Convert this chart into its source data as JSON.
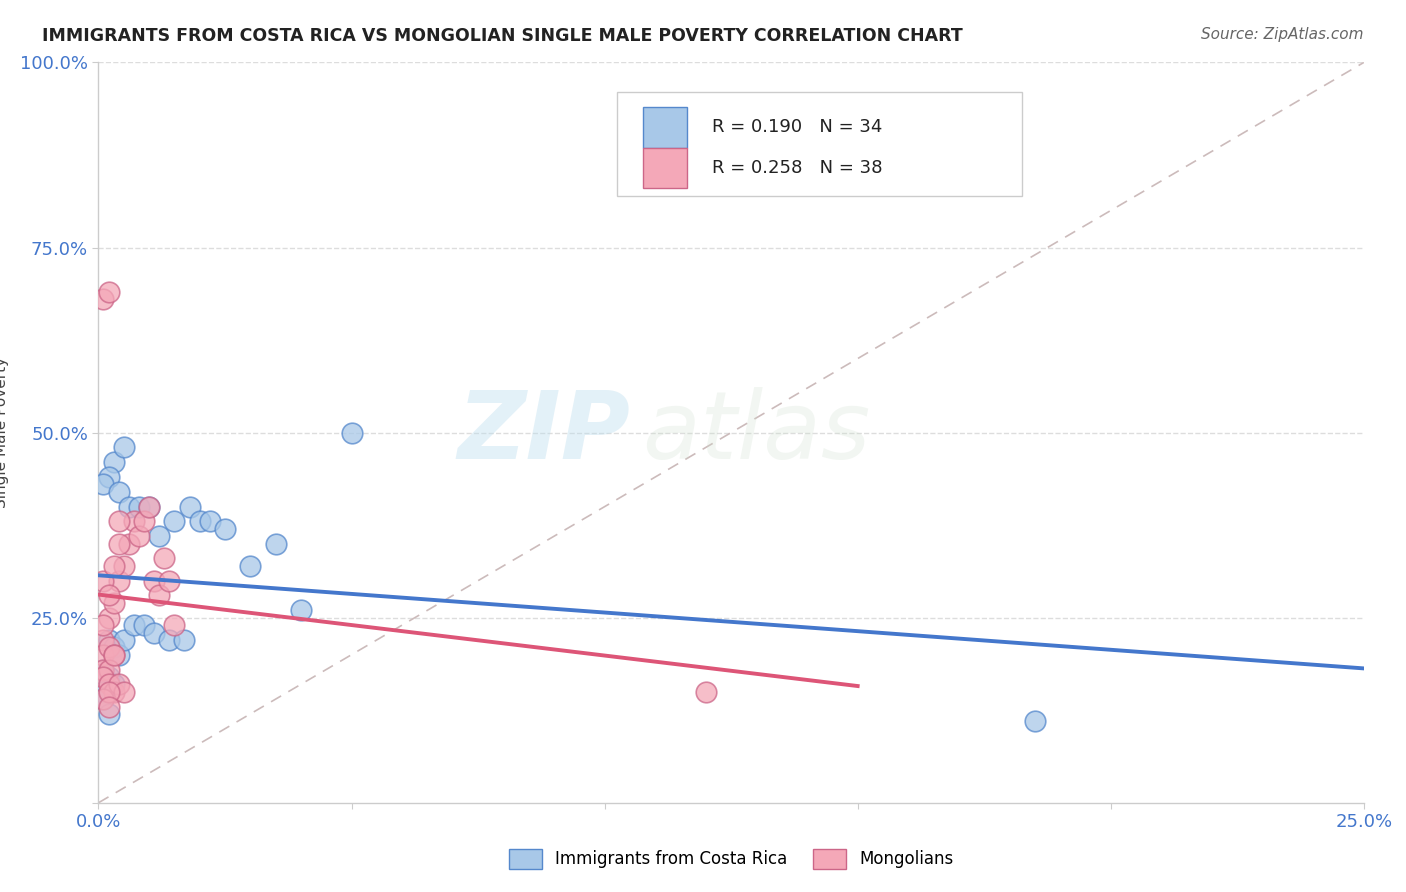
{
  "title": "IMMIGRANTS FROM COSTA RICA VS MONGOLIAN SINGLE MALE POVERTY CORRELATION CHART",
  "source_text": "Source: ZipAtlas.com",
  "ylabel": "Single Male Poverty",
  "xlim": [
    0.0,
    0.25
  ],
  "ylim": [
    0.0,
    1.0
  ],
  "xticks": [
    0.0,
    0.05,
    0.1,
    0.15,
    0.2,
    0.25
  ],
  "yticks": [
    0.0,
    0.25,
    0.5,
    0.75,
    1.0
  ],
  "xtick_labels": [
    "0.0%",
    "",
    "",
    "",
    "",
    "25.0%"
  ],
  "ytick_labels": [
    "",
    "25.0%",
    "50.0%",
    "75.0%",
    "100.0%"
  ],
  "blue_R": 0.19,
  "blue_N": 34,
  "pink_R": 0.258,
  "pink_N": 38,
  "blue_color": "#A8C8E8",
  "pink_color": "#F4A8B8",
  "blue_edge_color": "#5588CC",
  "pink_edge_color": "#CC6688",
  "blue_line_color": "#4477CC",
  "pink_line_color": "#DD5577",
  "diagonal_color": "#CCBBBB",
  "grid_color": "#DDDDDD",
  "watermark_zip": "ZIP",
  "watermark_atlas": "atlas",
  "legend_label_blue": "Immigrants from Costa Rica",
  "legend_label_pink": "Mongolians",
  "blue_points_x": [
    0.003,
    0.005,
    0.002,
    0.001,
    0.004,
    0.006,
    0.008,
    0.01,
    0.012,
    0.015,
    0.018,
    0.02,
    0.022,
    0.025,
    0.03,
    0.035,
    0.04,
    0.05,
    0.002,
    0.003,
    0.004,
    0.005,
    0.007,
    0.009,
    0.011,
    0.014,
    0.017,
    0.002,
    0.003,
    0.001,
    0.001,
    0.001,
    0.002,
    0.185
  ],
  "blue_points_y": [
    0.46,
    0.48,
    0.44,
    0.43,
    0.42,
    0.4,
    0.4,
    0.4,
    0.36,
    0.38,
    0.4,
    0.38,
    0.38,
    0.37,
    0.32,
    0.35,
    0.26,
    0.5,
    0.22,
    0.21,
    0.2,
    0.22,
    0.24,
    0.24,
    0.23,
    0.22,
    0.22,
    0.17,
    0.16,
    0.18,
    0.15,
    0.14,
    0.12,
    0.11
  ],
  "pink_points_x": [
    0.001,
    0.002,
    0.003,
    0.004,
    0.005,
    0.006,
    0.007,
    0.008,
    0.009,
    0.01,
    0.011,
    0.012,
    0.013,
    0.014,
    0.015,
    0.001,
    0.002,
    0.003,
    0.001,
    0.002,
    0.003,
    0.004,
    0.001,
    0.002,
    0.003,
    0.004,
    0.001,
    0.002,
    0.003,
    0.004,
    0.005,
    0.001,
    0.002,
    0.001,
    0.002,
    0.001,
    0.12,
    0.002
  ],
  "pink_points_y": [
    0.22,
    0.25,
    0.27,
    0.3,
    0.32,
    0.35,
    0.38,
    0.36,
    0.38,
    0.4,
    0.3,
    0.28,
    0.33,
    0.3,
    0.24,
    0.3,
    0.28,
    0.32,
    0.2,
    0.21,
    0.2,
    0.35,
    0.18,
    0.18,
    0.2,
    0.38,
    0.17,
    0.16,
    0.15,
    0.16,
    0.15,
    0.14,
    0.15,
    0.68,
    0.69,
    0.24,
    0.15,
    0.13
  ]
}
